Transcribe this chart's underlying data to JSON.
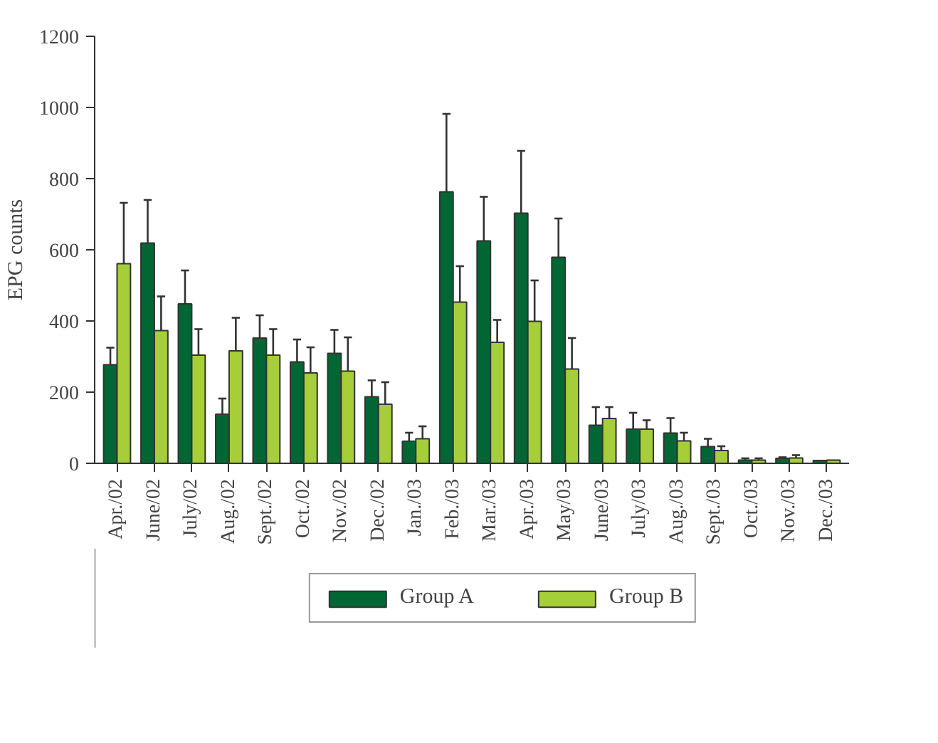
{
  "chart_data": {
    "type": "bar",
    "ylabel": "EPG counts",
    "categories": [
      "Apr./02",
      "June/02",
      "July/02",
      "Aug./02",
      "Sept./02",
      "Oct./02",
      "Nov./02",
      "Dec./02",
      "Jan./03",
      "Feb./03",
      "Mar./03",
      "Apr./03",
      "May/03",
      "June/03",
      "July/03",
      "Aug./03",
      "Sept./03",
      "Oct./03",
      "Nov./03",
      "Dec./03"
    ],
    "series": [
      {
        "name": "Group A",
        "color": "#006633",
        "values": [
          277,
          619,
          448,
          138,
          352,
          285,
          309,
          187,
          62,
          763,
          625,
          703,
          579,
          107,
          96,
          85,
          47,
          9,
          14,
          8
        ],
        "errors": [
          [
            277,
            325
          ],
          [
            619,
            740
          ],
          [
            448,
            542
          ],
          [
            138,
            182
          ],
          [
            352,
            416
          ],
          [
            285,
            348
          ],
          [
            309,
            375
          ],
          [
            187,
            233
          ],
          [
            62,
            86
          ],
          [
            763,
            982
          ],
          [
            625,
            749
          ],
          [
            703,
            878
          ],
          [
            579,
            688
          ],
          [
            107,
            158
          ],
          [
            96,
            142
          ],
          [
            85,
            127
          ],
          [
            47,
            69
          ],
          [
            9,
            14
          ],
          [
            14,
            17
          ],
          null
        ]
      },
      {
        "name": "Group B",
        "color": "#a6ce39",
        "values": [
          561,
          373,
          304,
          316,
          304,
          254,
          259,
          166,
          69,
          453,
          340,
          399,
          265,
          126,
          96,
          63,
          36,
          9,
          15,
          9
        ],
        "errors": [
          [
            561,
            732
          ],
          [
            373,
            469
          ],
          [
            304,
            377
          ],
          [
            316,
            409
          ],
          [
            304,
            377
          ],
          [
            254,
            326
          ],
          [
            259,
            354
          ],
          [
            166,
            228
          ],
          [
            69,
            104
          ],
          [
            453,
            554
          ],
          [
            340,
            403
          ],
          [
            399,
            514
          ],
          [
            265,
            352
          ],
          [
            126,
            158
          ],
          [
            96,
            121
          ],
          [
            63,
            86
          ],
          [
            36,
            48
          ],
          [
            9,
            14
          ],
          [
            15,
            23
          ],
          null
        ]
      }
    ],
    "ylim": [
      0,
      1200
    ],
    "yticks": [
      0,
      200,
      400,
      600,
      800,
      1000,
      1200
    ],
    "grid": false,
    "legend": "bottom"
  }
}
